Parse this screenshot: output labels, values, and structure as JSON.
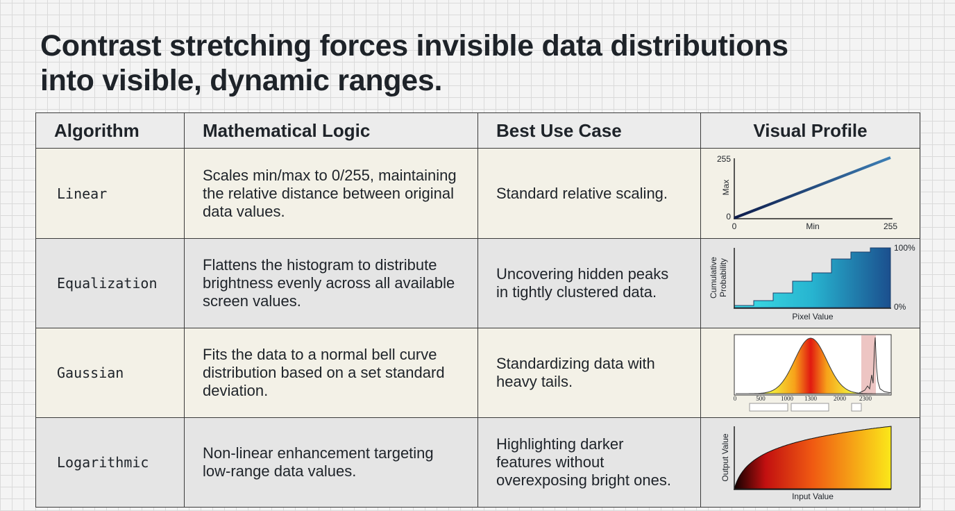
{
  "title_lines": [
    "Contrast stretching forces invisible data distributions",
    "into visible, dynamic ranges."
  ],
  "table": {
    "headers": [
      "Algorithm",
      "Mathematical Logic",
      "Best Use Case",
      "Visual Profile"
    ],
    "rows": [
      [
        "Linear",
        "Scales min/max to 0/255, maintaining the relative distance between original data values.",
        "Standard relative scaling."
      ],
      [
        "Equalization",
        "Flattens the histogram to distribute brightness evenly across all available screen values.",
        "Uncovering hidden peaks in tightly clustered data."
      ],
      [
        "Gaussian",
        "Fits the data to a normal bell curve distribution based on a set standard deviation.",
        "Standardizing data with heavy tails."
      ],
      [
        "Logarithmic",
        "Non-linear enhancement targeting low-range data values.",
        "Highlighting darker features without overexposing bright ones."
      ]
    ]
  },
  "profiles": [
    {
      "y_top": "255",
      "y_bottom": "0",
      "y_title": "Max",
      "x_left": "0",
      "x_title": "Min",
      "x_right": "255"
    },
    {
      "y_title_lines": [
        "Cumulative",
        "Probability"
      ],
      "y_top": "100%",
      "y_bottom": "0%",
      "x_title": "Pixel Value"
    },
    {
      "x_ticks": [
        "0",
        "500",
        "1000",
        "1300",
        "2000",
        "2300"
      ]
    },
    {
      "y_title": "Output Value",
      "x_title": "Input Value"
    }
  ]
}
